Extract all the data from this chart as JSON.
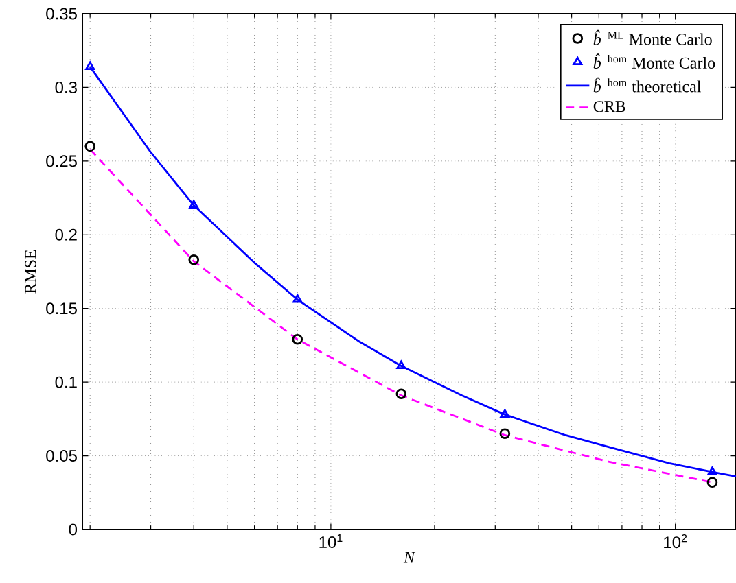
{
  "chart_data": {
    "type": "line",
    "xlabel": "N",
    "ylabel": "RMSE",
    "log": "x",
    "xlim": [
      1.9,
      150
    ],
    "ylim": [
      0,
      0.35
    ],
    "xticks": [
      {
        "value": 2,
        "label": null
      },
      {
        "value": 3,
        "label": null
      },
      {
        "value": 4,
        "label": null
      },
      {
        "value": 5,
        "label": null
      },
      {
        "value": 6,
        "label": null
      },
      {
        "value": 7,
        "label": null
      },
      {
        "value": 8,
        "label": null
      },
      {
        "value": 9,
        "label": null
      },
      {
        "value": 10,
        "label": "10$^{1}$"
      },
      {
        "value": 20,
        "label": null
      },
      {
        "value": 30,
        "label": null
      },
      {
        "value": 40,
        "label": null
      },
      {
        "value": 50,
        "label": null
      },
      {
        "value": 60,
        "label": null
      },
      {
        "value": 70,
        "label": null
      },
      {
        "value": 80,
        "label": null
      },
      {
        "value": 90,
        "label": null
      },
      {
        "value": 100,
        "label": "10$^{2}$"
      }
    ],
    "yticks": [
      0,
      0.05,
      0.1,
      0.15,
      0.2,
      0.25,
      0.3,
      0.35
    ],
    "grid": true,
    "legend": "top right",
    "series": [
      {
        "name": "*b̂*$^{ML}$ Monte Carlo",
        "type": "scatter",
        "marker": "circle",
        "color": "#000000",
        "x": [
          2,
          4,
          8,
          16,
          32,
          128
        ],
        "values": [
          0.26,
          0.183,
          0.129,
          0.092,
          0.065,
          0.032
        ]
      },
      {
        "name": "*b̂*$^{hom}$ Monte Carlo",
        "type": "scatter",
        "marker": "triangle",
        "color": "#0000ff",
        "x": [
          2,
          4,
          8,
          16,
          32,
          128
        ],
        "values": [
          0.314,
          0.22,
          0.156,
          0.111,
          0.078,
          0.039
        ]
      },
      {
        "name": "*b̂*$^{hom}$ theoretical",
        "line_style": "solid",
        "color": "#0000ff",
        "x": [
          2,
          3,
          4,
          6,
          8,
          12,
          16,
          24,
          32,
          48,
          64,
          96,
          128,
          150
        ],
        "values": [
          0.314,
          0.256,
          0.22,
          0.181,
          0.156,
          0.128,
          0.111,
          0.091,
          0.078,
          0.064,
          0.056,
          0.045,
          0.039,
          0.036
        ]
      },
      {
        "name": "CRB",
        "line_style": "dashed",
        "color": "#ff00ff",
        "x": [
          2,
          4,
          8,
          16,
          32,
          64,
          128
        ],
        "values": [
          0.258,
          0.182,
          0.129,
          0.091,
          0.064,
          0.046,
          0.032
        ]
      }
    ]
  }
}
